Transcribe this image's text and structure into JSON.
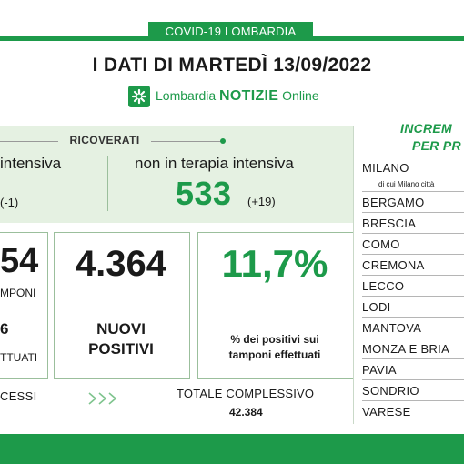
{
  "header": {
    "tab_label": "COVID-19 LOMBARDIA",
    "title": "I DATI DI MARTEDÌ 13/09/2022",
    "logo": {
      "prefix": "Lombardia",
      "brand": "NOTIZIE",
      "suffix": "Online",
      "icon": "lombardia-flower-icon"
    }
  },
  "ricoverati": {
    "label": "RICOVERATI",
    "terapia_intensiva": {
      "label": "intensiva",
      "change": "(-1)"
    },
    "non_terapia_intensiva": {
      "label": "non in terapia intensiva",
      "value": "533",
      "change": "(+19)"
    }
  },
  "stats": {
    "tamponi": {
      "value": "54",
      "label": "MPONI",
      "count": "6",
      "sublabel": "TTUATI"
    },
    "nuovi_positivi": {
      "value": "4.364",
      "label_line1": "NUOVI",
      "label_line2": "POSITIVI"
    },
    "percentuale": {
      "value": "11,7%",
      "label_line1": "% dei positivi sui",
      "label_line2": "tamponi effettuati"
    }
  },
  "footer": {
    "decessi_label": "CESSI",
    "totale_label": "TOTALE COMPLESSIVO",
    "totale_value": "42.384"
  },
  "province": {
    "header_line1": "INCREM",
    "header_line2": "PER PR",
    "milano_sub": "di cui Milano città",
    "items": [
      "MILANO",
      "BERGAMO",
      "BRESCIA",
      "COMO",
      "CREMONA",
      "LECCO",
      "LODI",
      "MANTOVA",
      "MONZA E BRIA",
      "PAVIA",
      "SONDRIO",
      "VARESE"
    ]
  },
  "colors": {
    "accent": "#1d9a4a",
    "panel": "#e5f1e2"
  }
}
